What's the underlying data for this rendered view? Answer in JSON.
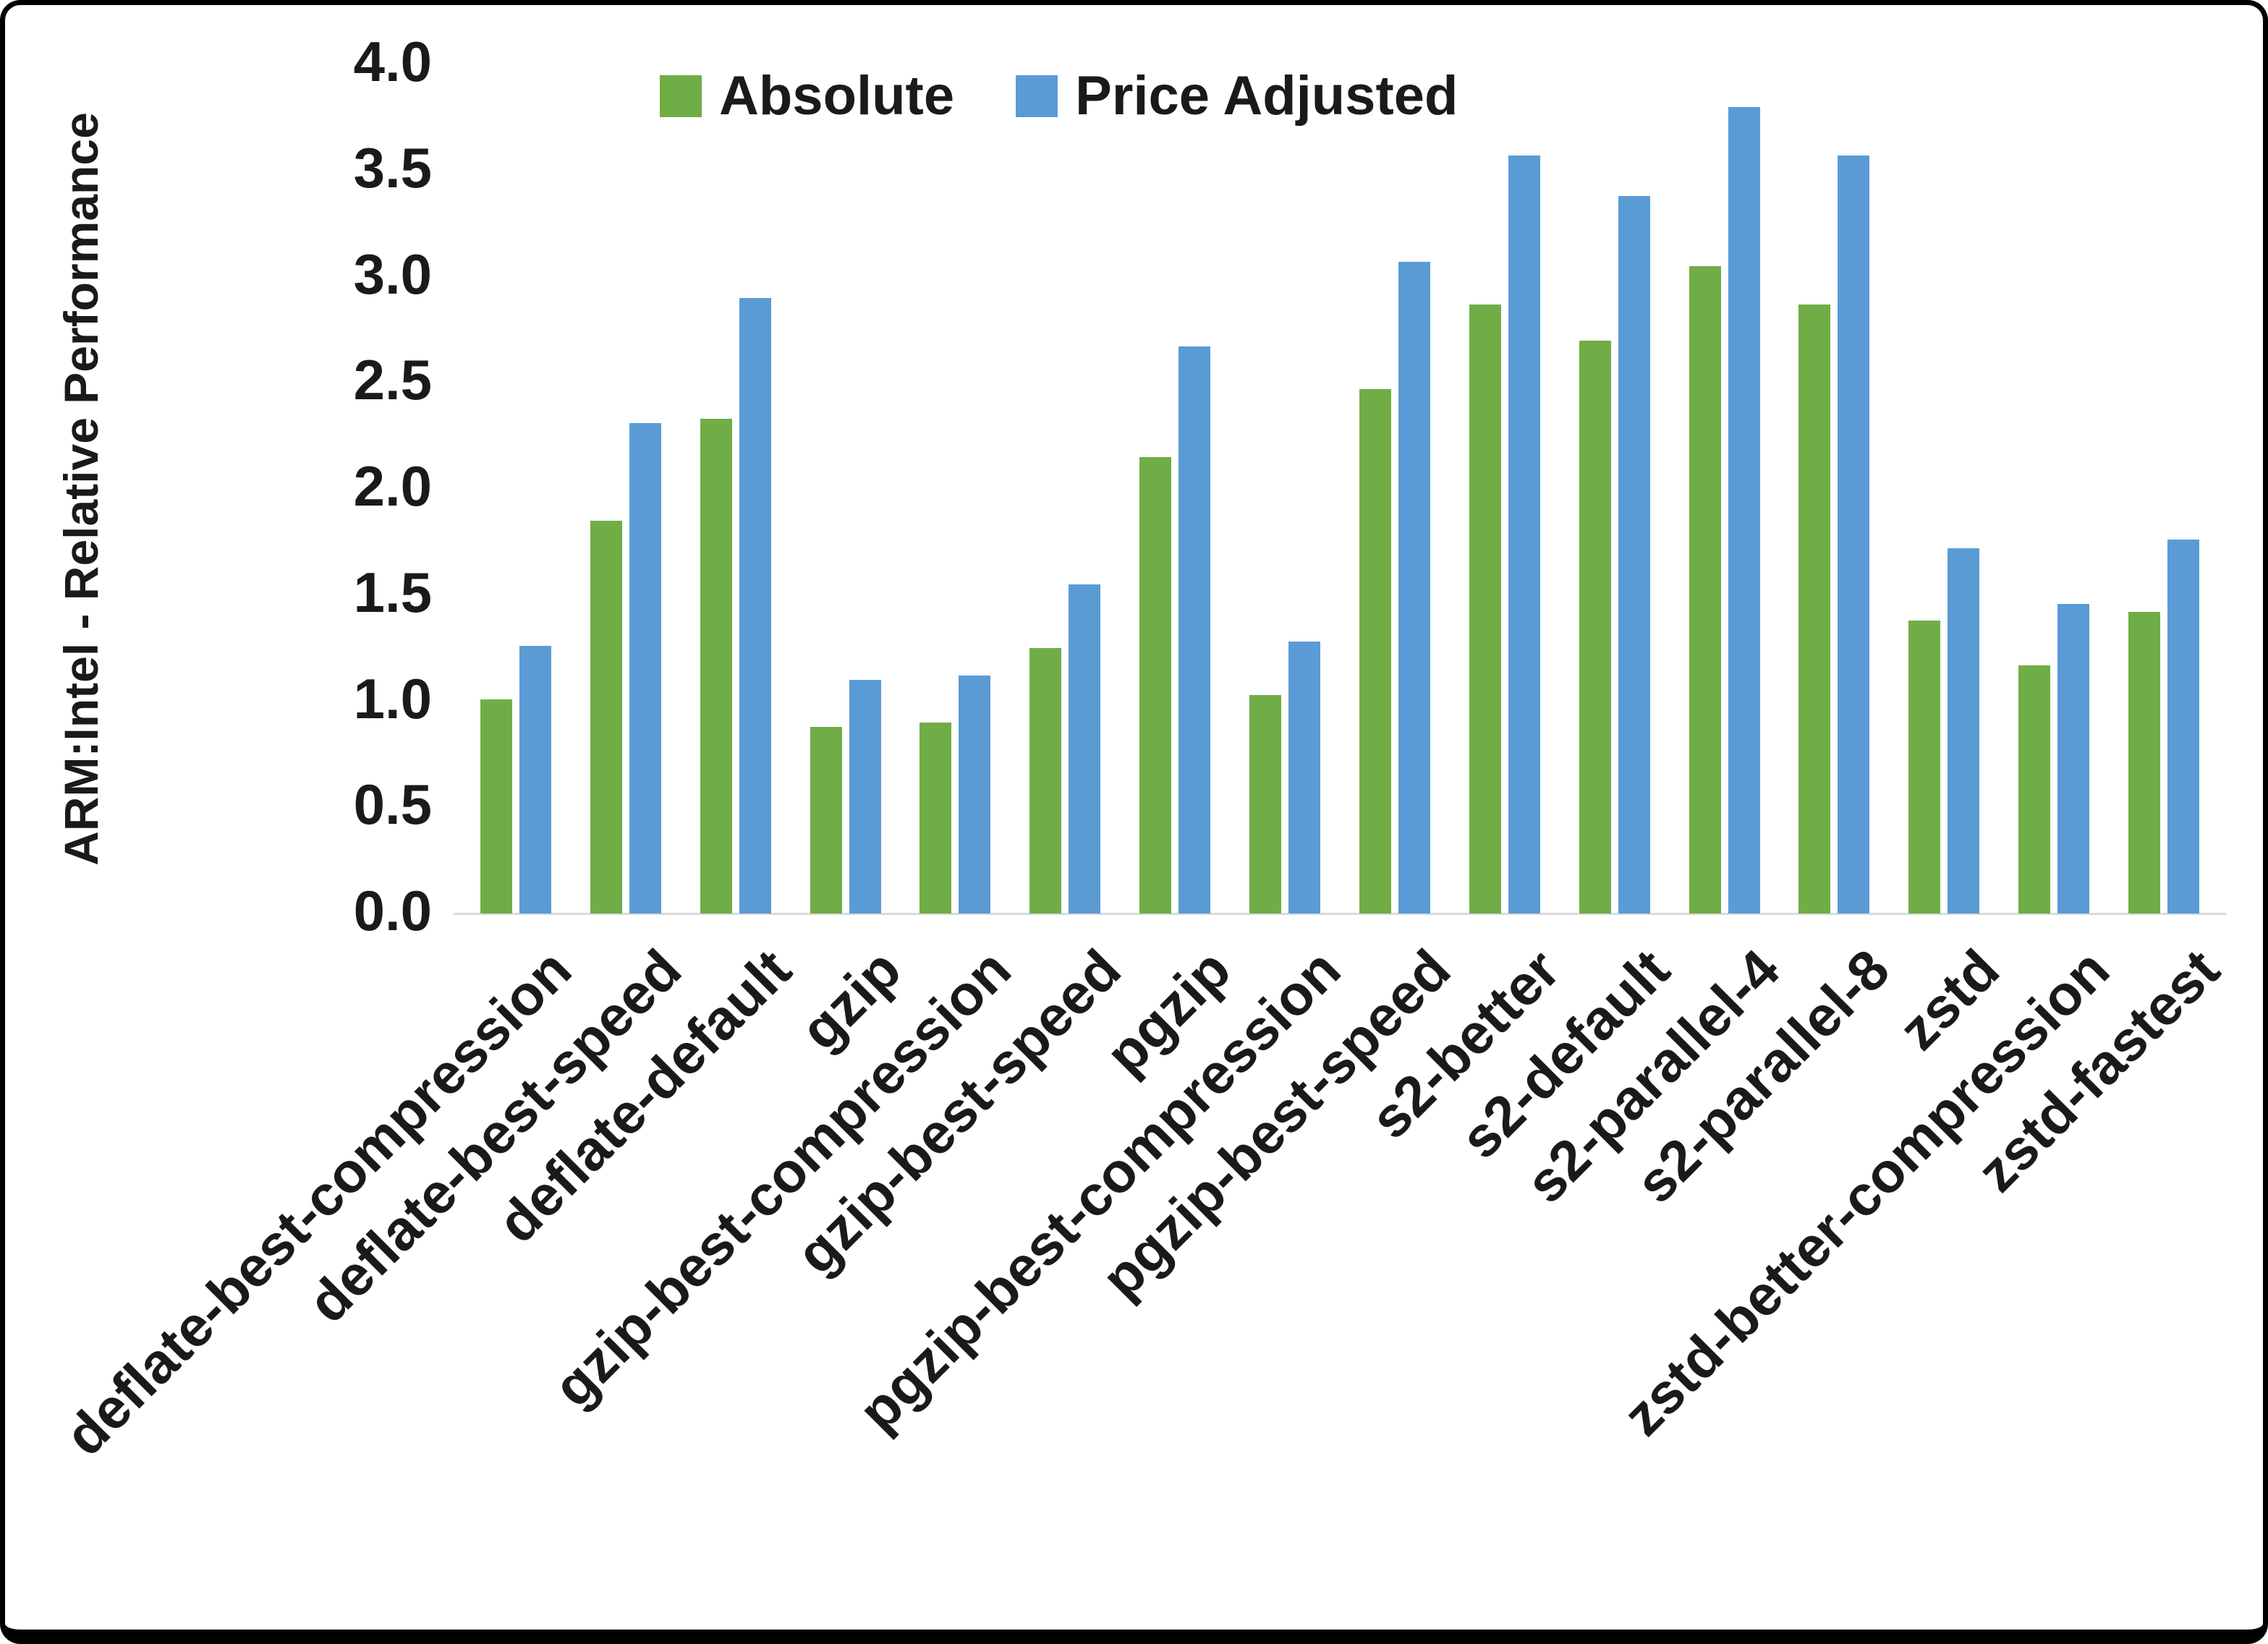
{
  "chart_data": {
    "type": "bar",
    "title": "",
    "xlabel": "",
    "ylabel": "ARM:Intel - Relative Performance",
    "ylim": [
      0,
      4.0
    ],
    "ytick_step": 0.5,
    "ytick_labels": [
      "0.0",
      "0.5",
      "1.0",
      "1.5",
      "2.0",
      "2.5",
      "3.0",
      "3.5",
      "4.0"
    ],
    "grid": false,
    "legend_position": "top",
    "categories": [
      "deflate-best-compression",
      "deflate-best-speed",
      "deflate-default",
      "gzip",
      "gzip-best-compression",
      "gzip-best-speed",
      "pgzip",
      "pgzip-best-compression",
      "pgzip-best-speed",
      "s2-better",
      "s2-default",
      "s2-parallel-4",
      "s2-parallel-8",
      "zstd",
      "zstd-better-compression",
      "zstd-fastest"
    ],
    "series": [
      {
        "name": "Absolute",
        "color": "#70AD47",
        "values": [
          1.01,
          1.85,
          2.33,
          0.88,
          0.9,
          1.25,
          2.15,
          1.03,
          2.47,
          2.87,
          2.7,
          3.05,
          2.87,
          1.38,
          1.17,
          1.42
        ]
      },
      {
        "name": "Price Adjusted",
        "color": "#5B9BD5",
        "values": [
          1.26,
          2.31,
          2.9,
          1.1,
          1.12,
          1.55,
          2.67,
          1.28,
          3.07,
          3.57,
          3.38,
          3.8,
          3.57,
          1.72,
          1.46,
          1.76
        ]
      }
    ]
  },
  "colors": {
    "axis_line": "#d9d9d9",
    "text": "#1a1a1a",
    "frame_border": "#000000",
    "background": "#ffffff"
  }
}
